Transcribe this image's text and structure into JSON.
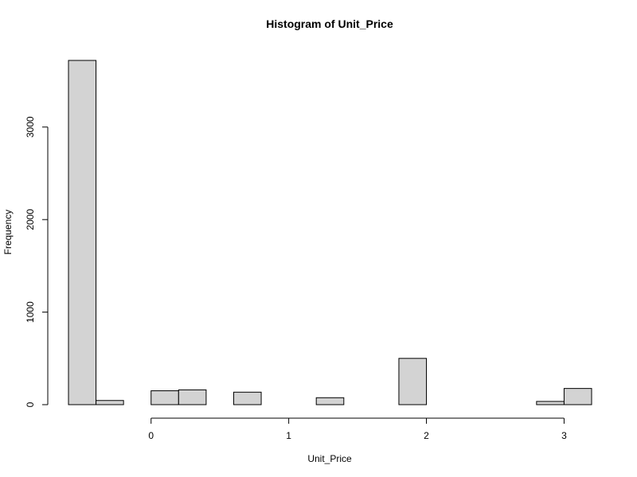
{
  "chart_data": {
    "type": "bar",
    "title": "Histogram of Unit_Price",
    "xlabel": "Unit_Price",
    "ylabel": "Frequency",
    "bin_width": 0.2,
    "bins": [
      {
        "start": -0.6,
        "end": -0.4,
        "count": 3720
      },
      {
        "start": -0.4,
        "end": -0.2,
        "count": 45
      },
      {
        "start": -0.2,
        "end": 0.0,
        "count": 0
      },
      {
        "start": 0.0,
        "end": 0.2,
        "count": 150
      },
      {
        "start": 0.2,
        "end": 0.4,
        "count": 160
      },
      {
        "start": 0.4,
        "end": 0.6,
        "count": 0
      },
      {
        "start": 0.6,
        "end": 0.8,
        "count": 135
      },
      {
        "start": 0.8,
        "end": 1.0,
        "count": 0
      },
      {
        "start": 1.0,
        "end": 1.2,
        "count": 0
      },
      {
        "start": 1.2,
        "end": 1.4,
        "count": 75
      },
      {
        "start": 1.4,
        "end": 1.6,
        "count": 0
      },
      {
        "start": 1.6,
        "end": 1.8,
        "count": 0
      },
      {
        "start": 1.8,
        "end": 2.0,
        "count": 500
      },
      {
        "start": 2.0,
        "end": 2.2,
        "count": 0
      },
      {
        "start": 2.2,
        "end": 2.4,
        "count": 0
      },
      {
        "start": 2.4,
        "end": 2.6,
        "count": 0
      },
      {
        "start": 2.6,
        "end": 2.8,
        "count": 0
      },
      {
        "start": 2.8,
        "end": 3.0,
        "count": 35
      },
      {
        "start": 3.0,
        "end": 3.2,
        "count": 175
      }
    ],
    "xticks": [
      0,
      1,
      2,
      3
    ],
    "yticks": [
      0,
      1000,
      2000,
      3000
    ],
    "xlim": [
      -0.6,
      3.2
    ],
    "ylim": [
      0,
      3720
    ],
    "grid": false,
    "bar_color": "#d3d3d3",
    "edge_color": "#000000"
  }
}
